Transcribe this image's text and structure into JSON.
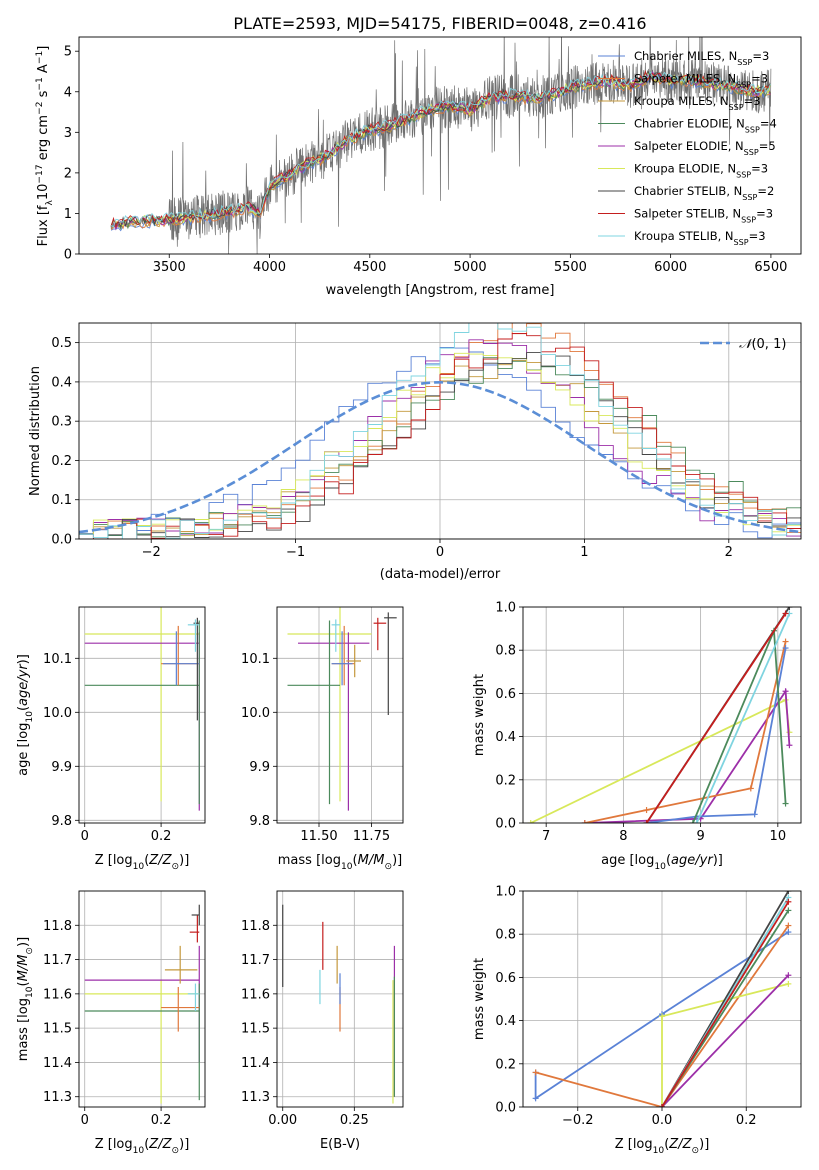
{
  "figure_title": "PLATE=2593, MJD=54175, FIBERID=0048, z=0.416",
  "colors": {
    "Chabrier MILES": "#5a82d6",
    "Salpeter MILES": "#e0783c",
    "Kroupa MILES": "#c4983c",
    "Chabrier ELODIE": "#4c8a5c",
    "Salpeter ELODIE": "#9c2fa8",
    "Kroupa ELODIE": "#d8e85a",
    "Chabrier STELIB": "#444444",
    "Salpeter STELIB": "#c41e1e",
    "Kroupa STELIB": "#7fd4e0",
    "spectrum": "#707070",
    "normal": "#5b8ed6",
    "grid": "#b0b0b0"
  },
  "chart_data": [
    {
      "id": "spectrum",
      "type": "line",
      "title": "PLATE=2593, MJD=54175, FIBERID=0048, z=0.416",
      "xlabel": "wavelength [Angstrom, rest frame]",
      "ylabel": "Flux [f_λ 10^-17 erg cm^-2 s^-1 A^-1]",
      "xlim": [
        3050,
        6650
      ],
      "ylim": [
        0,
        5.35
      ],
      "xticks": [
        3500,
        4000,
        4500,
        5000,
        5500,
        6000,
        6500
      ],
      "yticks": [
        0,
        1,
        2,
        3,
        4,
        5
      ],
      "grid": false,
      "legend_position": "top-right",
      "legend": [
        "Chabrier MILES, N_SSP=3",
        "Salpeter MILES, N_SSP=3",
        "Kroupa MILES, N_SSP=3",
        "Chabrier ELODIE, N_SSP=4",
        "Salpeter ELODIE, N_SSP=5",
        "Kroupa ELODIE, N_SSP=3",
        "Chabrier STELIB, N_SSP=2",
        "Salpeter STELIB, N_SSP=3",
        "Kroupa STELIB, N_SSP=3"
      ],
      "continuum_anchors": {
        "x": [
          3210,
          3280,
          3400,
          3500,
          3600,
          3700,
          3800,
          3900,
          3950,
          4000,
          4100,
          4200,
          4300,
          4400,
          4500,
          4600,
          4700,
          4800,
          4900,
          5000,
          5100,
          5200,
          5300,
          5400,
          5500,
          5600,
          5700,
          5800,
          5900,
          6000,
          6100,
          6200,
          6300,
          6400,
          6500
        ],
        "y": [
          0.7,
          0.78,
          0.82,
          0.83,
          0.9,
          0.95,
          1.05,
          1.15,
          1.0,
          1.65,
          1.95,
          2.25,
          2.45,
          2.85,
          3.05,
          3.15,
          3.35,
          3.55,
          3.65,
          3.55,
          3.85,
          3.9,
          3.85,
          3.9,
          4.1,
          4.2,
          4.25,
          4.15,
          4.4,
          4.25,
          4.3,
          4.2,
          4.15,
          4.0,
          4.05
        ]
      }
    },
    {
      "id": "residuals",
      "type": "step-histogram",
      "xlabel": "(data-model)/error",
      "ylabel": "Normed distribution",
      "xlim": [
        -2.5,
        2.5
      ],
      "ylim": [
        0,
        0.55
      ],
      "xticks": [
        -2,
        -1,
        0,
        1,
        2
      ],
      "yticks": [
        0.0,
        0.1,
        0.2,
        0.3,
        0.4,
        0.5
      ],
      "grid": true,
      "legend_position": "top-right",
      "legend": [
        "N(0,1)"
      ],
      "bin_width": 0.1,
      "bin_starts_at": -2.5,
      "reference_curve": {
        "name": "N(0,1)",
        "mean": 0,
        "sigma": 1
      }
    },
    {
      "id": "age_vs_Z",
      "type": "errorbar",
      "xlabel": "Z [log10(Z/Z_sun)]",
      "ylabel": "age [log10(age/yr)]",
      "xlim": [
        -0.015,
        0.315
      ],
      "ylim": [
        9.795,
        10.195
      ],
      "xticks": [
        0.0,
        0.2
      ],
      "yticks": [
        9.8,
        9.9,
        10.0,
        10.1
      ],
      "grid": true,
      "points": [
        {
          "series": "Kroupa ELODIE",
          "x": 0.2,
          "y": 10.145,
          "xerr": [
            0.2,
            0.1
          ],
          "yerr": [
            0.31,
            0.05
          ]
        },
        {
          "series": "Salpeter ELODIE",
          "x": 0.3,
          "y": 10.128,
          "xerr": [
            0.3,
            0.0
          ],
          "yerr": [
            0.31,
            0.02
          ]
        },
        {
          "series": "Chabrier ELODIE",
          "x": 0.3,
          "y": 10.05,
          "xerr": [
            0.3,
            0.0
          ],
          "yerr": [
            0.22,
            0.12
          ]
        },
        {
          "series": "Salpeter MILES",
          "x": 0.245,
          "y": 10.09,
          "xerr": [
            0.045,
            0.055
          ],
          "yerr": [
            0.04,
            0.07
          ]
        },
        {
          "series": "Chabrier MILES",
          "x": 0.24,
          "y": 10.09,
          "xerr": [
            0.035,
            0.06
          ],
          "yerr": [
            0.04,
            0.06
          ]
        },
        {
          "series": "Chabrier STELIB",
          "x": 0.295,
          "y": 10.165,
          "xerr": [
            0.01,
            0.005
          ],
          "yerr": [
            0.18,
            0.01
          ]
        },
        {
          "series": "Kroupa STELIB",
          "x": 0.29,
          "y": 10.162,
          "xerr": [
            0.02,
            0.01
          ],
          "yerr": [
            0.05,
            0.01
          ]
        }
      ]
    },
    {
      "id": "age_vs_mass",
      "type": "errorbar",
      "xlabel": "mass [log10(M/M_sun)]",
      "ylabel": "",
      "xlim": [
        11.3,
        11.9
      ],
      "ylim": [
        9.795,
        10.195
      ],
      "xticks": [
        11.5,
        11.75
      ],
      "xticklabels": [
        "11.50",
        "11.75"
      ],
      "yticks": [
        9.8,
        9.9,
        10.0,
        10.1
      ],
      "grid": true,
      "points": [
        {
          "series": "Kroupa ELODIE",
          "x": 11.6,
          "y": 10.145,
          "xerr": [
            0.25,
            0.15
          ],
          "yerr": [
            0.31,
            0.05
          ]
        },
        {
          "series": "Salpeter ELODIE",
          "x": 11.64,
          "y": 10.128,
          "xerr": [
            0.24,
            0.1
          ],
          "yerr": [
            0.31,
            0.02
          ]
        },
        {
          "series": "Chabrier ELODIE",
          "x": 11.55,
          "y": 10.05,
          "xerr": [
            0.2,
            0.05
          ],
          "yerr": [
            0.22,
            0.12
          ]
        },
        {
          "series": "Salpeter MILES",
          "x": 11.62,
          "y": 10.09,
          "xerr": [
            0.06,
            0.05
          ],
          "yerr": [
            0.04,
            0.07
          ]
        },
        {
          "series": "Chabrier MILES",
          "x": 11.61,
          "y": 10.09,
          "xerr": [
            0.05,
            0.05
          ],
          "yerr": [
            0.04,
            0.06
          ]
        },
        {
          "series": "Kroupa MILES",
          "x": 11.67,
          "y": 10.095,
          "xerr": [
            0.04,
            0.03
          ],
          "yerr": [
            0.03,
            0.03
          ]
        },
        {
          "series": "Salpeter STELIB",
          "x": 11.78,
          "y": 10.165,
          "xerr": [
            0.02,
            0.04
          ],
          "yerr": [
            0.05,
            0.01
          ]
        },
        {
          "series": "Chabrier STELIB",
          "x": 11.83,
          "y": 10.175,
          "xerr": [
            0.02,
            0.04
          ],
          "yerr": [
            0.18,
            0.01
          ]
        },
        {
          "series": "Kroupa STELIB",
          "x": 11.58,
          "y": 10.162,
          "xerr": [
            0.02,
            0.02
          ],
          "yerr": [
            0.05,
            0.01
          ]
        }
      ]
    },
    {
      "id": "weight_vs_age",
      "type": "line",
      "xlabel": "age [log10(age/yr)]",
      "ylabel": "mass weight",
      "xlim": [
        6.7,
        10.3
      ],
      "ylim": [
        0,
        1.0
      ],
      "xticks": [
        7,
        8,
        9,
        10
      ],
      "yticks": [
        0.0,
        0.2,
        0.4,
        0.6,
        0.8,
        1.0
      ],
      "grid": true,
      "series": [
        {
          "name": "Kroupa ELODIE",
          "x": [
            6.8,
            10.1,
            10.15
          ],
          "y": [
            0.0,
            0.57,
            0.42
          ]
        },
        {
          "name": "Chabrier STELIB",
          "x": [
            8.3,
            10.15
          ],
          "y": [
            0.0,
            1.0
          ]
        },
        {
          "name": "Salpeter ELODIE",
          "x": [
            7.5,
            9.0,
            10.1,
            10.15
          ],
          "y": [
            0.0,
            0.02,
            0.61,
            0.36
          ]
        },
        {
          "name": "Salpeter MILES",
          "x": [
            7.5,
            8.3,
            9.65,
            10.1
          ],
          "y": [
            0.0,
            0.06,
            0.16,
            0.84
          ]
        },
        {
          "name": "Chabrier MILES",
          "x": [
            8.3,
            8.95,
            9.7,
            10.1
          ],
          "y": [
            0.0,
            0.03,
            0.04,
            0.81
          ]
        },
        {
          "name": "Chabrier ELODIE",
          "x": [
            8.9,
            9.95,
            10.1
          ],
          "y": [
            0.0,
            0.89,
            0.09
          ]
        },
        {
          "name": "Kroupa STELIB",
          "x": [
            8.95,
            10.15
          ],
          "y": [
            0.0,
            0.97
          ]
        },
        {
          "name": "Salpeter STELIB",
          "x": [
            8.3,
            10.1
          ],
          "y": [
            0.0,
            0.97
          ]
        }
      ]
    },
    {
      "id": "mass_vs_Z",
      "type": "errorbar",
      "xlabel": "Z [log10(Z/Z_sun)]",
      "ylabel": "mass [log10(M/M_sun)]",
      "xlim": [
        -0.015,
        0.315
      ],
      "ylim": [
        11.27,
        11.9
      ],
      "xticks": [
        0.0,
        0.2
      ],
      "yticks": [
        11.3,
        11.4,
        11.5,
        11.6,
        11.7,
        11.8
      ],
      "grid": true,
      "points": [
        {
          "series": "Kroupa ELODIE",
          "x": 0.2,
          "y": 11.6,
          "xerr": [
            0.2,
            0.1
          ],
          "yerr": [
            0.32,
            0.04
          ]
        },
        {
          "series": "Salpeter ELODIE",
          "x": 0.3,
          "y": 11.64,
          "xerr": [
            0.3,
            0.0
          ],
          "yerr": [
            0.24,
            0.1
          ]
        },
        {
          "series": "Chabrier ELODIE",
          "x": 0.3,
          "y": 11.55,
          "xerr": [
            0.3,
            0.0
          ],
          "yerr": [
            0.26,
            0.08
          ]
        },
        {
          "series": "Salpeter MILES",
          "x": 0.245,
          "y": 11.56,
          "xerr": [
            0.045,
            0.055
          ],
          "yerr": [
            0.07,
            0.06
          ]
        },
        {
          "series": "Kroupa MILES",
          "x": 0.25,
          "y": 11.67,
          "xerr": [
            0.04,
            0.045
          ],
          "yerr": [
            0.04,
            0.07
          ]
        },
        {
          "series": "Salpeter STELIB",
          "x": 0.295,
          "y": 11.78,
          "xerr": [
            0.02,
            0.005
          ],
          "yerr": [
            0.03,
            0.05
          ]
        },
        {
          "series": "Chabrier STELIB",
          "x": 0.3,
          "y": 11.83,
          "xerr": [
            0.02,
            0.0
          ],
          "yerr": [
            0.03,
            0.03
          ]
        },
        {
          "series": "Kroupa STELIB",
          "x": 0.29,
          "y": 11.6,
          "xerr": [
            0.02,
            0.01
          ],
          "yerr": [
            0.05,
            0.03
          ]
        }
      ]
    },
    {
      "id": "mass_vs_ebv",
      "type": "errorbar",
      "xlabel": "E(B-V)",
      "ylabel": "",
      "xlim": [
        -0.02,
        0.42
      ],
      "ylim": [
        11.27,
        11.9
      ],
      "xticks": [
        0.0,
        0.25
      ],
      "xticklabels": [
        "0.00",
        "0.25"
      ],
      "yticks": [
        11.3,
        11.4,
        11.5,
        11.6,
        11.7,
        11.8
      ],
      "grid": true,
      "points": [
        {
          "series": "Chabrier STELIB",
          "x": 0.0,
          "y": 11.74,
          "xerr": [
            0,
            0
          ],
          "yerr": [
            0.12,
            0.12
          ]
        },
        {
          "series": "Salpeter STELIB",
          "x": 0.14,
          "y": 11.73,
          "xerr": [
            0,
            0
          ],
          "yerr": [
            0.06,
            0.08
          ]
        },
        {
          "series": "Kroupa STELIB",
          "x": 0.13,
          "y": 11.62,
          "xerr": [
            0,
            0
          ],
          "yerr": [
            0.05,
            0.05
          ]
        },
        {
          "series": "Salpeter MILES",
          "x": 0.2,
          "y": 11.56,
          "xerr": [
            0,
            0
          ],
          "yerr": [
            0.07,
            0.06
          ]
        },
        {
          "series": "Kroupa MILES",
          "x": 0.19,
          "y": 11.67,
          "xerr": [
            0,
            0
          ],
          "yerr": [
            0.04,
            0.07
          ]
        },
        {
          "series": "Chabrier MILES",
          "x": 0.2,
          "y": 11.6,
          "xerr": [
            0,
            0
          ],
          "yerr": [
            0.03,
            0.06
          ]
        },
        {
          "series": "Salpeter ELODIE",
          "x": 0.39,
          "y": 11.62,
          "xerr": [
            0,
            0
          ],
          "yerr": [
            0.32,
            0.12
          ]
        },
        {
          "series": "Kroupa ELODIE",
          "x": 0.385,
          "y": 11.46,
          "xerr": [
            0,
            0
          ],
          "yerr": [
            0.18,
            0.18
          ]
        },
        {
          "series": "Chabrier ELODIE",
          "x": 0.39,
          "y": 11.45,
          "xerr": [
            0,
            0
          ],
          "yerr": [
            0.15,
            0.2
          ]
        }
      ]
    },
    {
      "id": "weight_vs_Z",
      "type": "line",
      "xlabel": "Z [log10(Z/Z_sun)]",
      "ylabel": "mass weight",
      "xlim": [
        -0.33,
        0.33
      ],
      "ylim": [
        0,
        1.0
      ],
      "xticks": [
        -0.2,
        0.0,
        0.2
      ],
      "xticklabels": [
        "−0.2",
        "0.0",
        "0.2"
      ],
      "yticks": [
        0.0,
        0.2,
        0.4,
        0.6,
        0.8,
        1.0
      ],
      "grid": true,
      "series": [
        {
          "name": "Chabrier MILES",
          "x": [
            -0.3,
            -0.3,
            0.0,
            0.3
          ],
          "y": [
            0.16,
            0.04,
            0.43,
            0.81
          ]
        },
        {
          "name": "Salpeter MILES",
          "x": [
            -0.3,
            0.0,
            0.3
          ],
          "y": [
            0.16,
            0.0,
            0.84
          ]
        },
        {
          "name": "Kroupa ELODIE",
          "x": [
            0.0,
            0.0,
            0.3
          ],
          "y": [
            0.0,
            0.42,
            0.57
          ]
        },
        {
          "name": "Salpeter ELODIE",
          "x": [
            0.0,
            0.3
          ],
          "y": [
            0.0,
            0.61
          ]
        },
        {
          "name": "Chabrier ELODIE",
          "x": [
            0.0,
            0.3
          ],
          "y": [
            0.0,
            0.91
          ]
        },
        {
          "name": "Chabrier STELIB",
          "x": [
            0.0,
            0.3
          ],
          "y": [
            0.0,
            1.0
          ]
        },
        {
          "name": "Kroupa STELIB",
          "x": [
            0.0,
            0.3
          ],
          "y": [
            0.0,
            0.97
          ]
        },
        {
          "name": "Salpeter STELIB",
          "x": [
            0.0,
            0.3
          ],
          "y": [
            0.0,
            0.95
          ]
        }
      ]
    }
  ]
}
